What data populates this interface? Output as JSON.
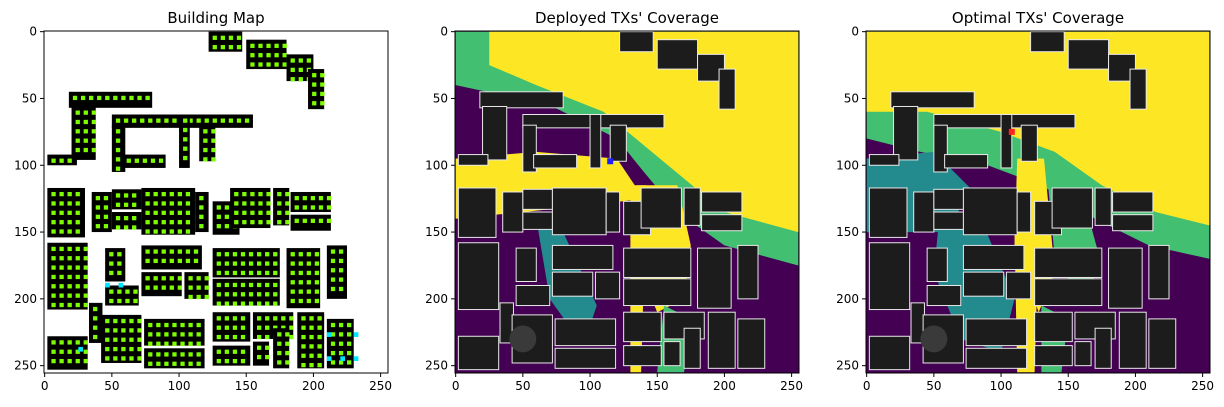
{
  "chart_data": [
    {
      "type": "heatmap",
      "title": "Building Map",
      "xlim": [
        0,
        255
      ],
      "ylim": [
        255,
        0
      ],
      "xticks": [
        0,
        50,
        100,
        150,
        200,
        250
      ],
      "yticks": [
        0,
        50,
        100,
        150,
        200,
        250
      ],
      "background": "#ffffff",
      "colors": {
        "building": "#000000",
        "grid_point": "#7cfc00",
        "special_point": "#00e5ff"
      },
      "buildings": [
        [
          122,
          0,
          25,
          15
        ],
        [
          150,
          6,
          30,
          22
        ],
        [
          180,
          17,
          20,
          20
        ],
        [
          196,
          28,
          12,
          30
        ],
        [
          18,
          45,
          62,
          12
        ],
        [
          20,
          56,
          18,
          40
        ],
        [
          2,
          92,
          22,
          8
        ],
        [
          50,
          62,
          105,
          10
        ],
        [
          100,
          62,
          8,
          40
        ],
        [
          115,
          70,
          12,
          27
        ],
        [
          50,
          70,
          10,
          35
        ],
        [
          58,
          92,
          32,
          10
        ],
        [
          2,
          117,
          28,
          37
        ],
        [
          35,
          120,
          15,
          30
        ],
        [
          50,
          118,
          22,
          15
        ],
        [
          50,
          135,
          22,
          13
        ],
        [
          72,
          117,
          40,
          35
        ],
        [
          112,
          120,
          10,
          30
        ],
        [
          125,
          127,
          20,
          25
        ],
        [
          138,
          117,
          30,
          30
        ],
        [
          170,
          117,
          12,
          28
        ],
        [
          183,
          120,
          30,
          15
        ],
        [
          183,
          137,
          30,
          12
        ],
        [
          2,
          158,
          30,
          50
        ],
        [
          45,
          162,
          15,
          25
        ],
        [
          45,
          190,
          25,
          15
        ],
        [
          72,
          160,
          45,
          18
        ],
        [
          72,
          180,
          30,
          18
        ],
        [
          104,
          180,
          18,
          20
        ],
        [
          125,
          162,
          50,
          22
        ],
        [
          125,
          185,
          50,
          20
        ],
        [
          180,
          162,
          25,
          45
        ],
        [
          210,
          160,
          15,
          40
        ],
        [
          33,
          203,
          10,
          30
        ],
        [
          2,
          228,
          30,
          25
        ],
        [
          42,
          212,
          30,
          36
        ],
        [
          74,
          215,
          45,
          20
        ],
        [
          74,
          237,
          45,
          15
        ],
        [
          125,
          210,
          28,
          22
        ],
        [
          125,
          235,
          28,
          15
        ],
        [
          155,
          210,
          30,
          20
        ],
        [
          155,
          232,
          12,
          18
        ],
        [
          170,
          222,
          12,
          30
        ],
        [
          188,
          210,
          20,
          42
        ],
        [
          210,
          215,
          20,
          37
        ]
      ],
      "cyan_points": [
        [
          45,
          188
        ],
        [
          55,
          188
        ],
        [
          25,
          236
        ],
        [
          210,
          225
        ],
        [
          210,
          243
        ],
        [
          220,
          243
        ],
        [
          230,
          225
        ],
        [
          230,
          243
        ]
      ]
    },
    {
      "type": "heatmap",
      "title": "Deployed TXs' Coverage",
      "xlim": [
        0,
        255
      ],
      "ylim": [
        255,
        0
      ],
      "xticks": [
        0,
        50,
        100,
        150,
        200,
        250
      ],
      "yticks": [
        0,
        50,
        100,
        150,
        200,
        250
      ],
      "colormap": [
        "#440154",
        "#238a8d",
        "#43bf71",
        "#fde725"
      ],
      "transmitter": {
        "x": 115,
        "y": 97,
        "color": "#1f1fff"
      }
    },
    {
      "type": "heatmap",
      "title": "Optimal TXs' Coverage",
      "xlim": [
        0,
        255
      ],
      "ylim": [
        255,
        0
      ],
      "xticks": [
        0,
        50,
        100,
        150,
        200,
        250
      ],
      "yticks": [
        0,
        50,
        100,
        150,
        200,
        250
      ],
      "colormap": [
        "#440154",
        "#238a8d",
        "#43bf71",
        "#fde725"
      ],
      "transmitter": {
        "x": 108,
        "y": 75,
        "color": "#ff2020"
      }
    }
  ]
}
